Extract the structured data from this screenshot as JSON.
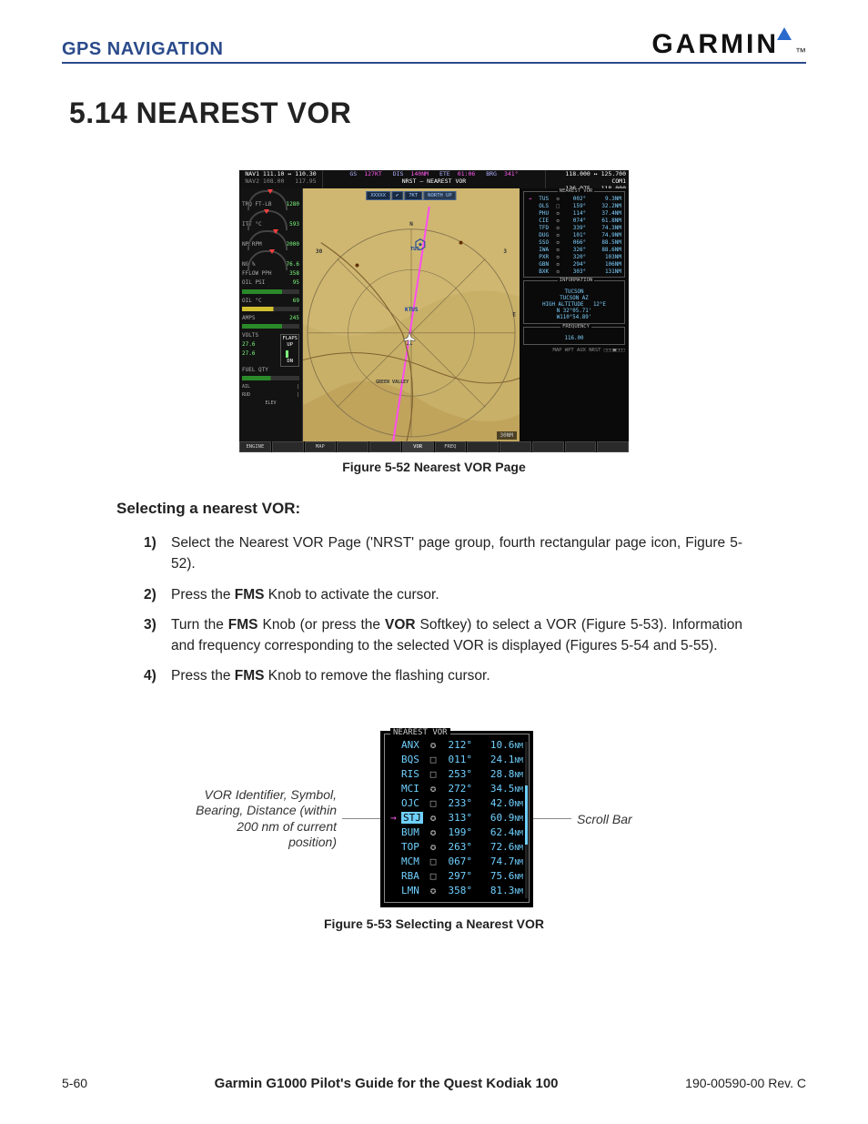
{
  "header": {
    "section": "GPS NAVIGATION",
    "brand": "GARMIN"
  },
  "title": "5.14  NEAREST VOR",
  "fig52": {
    "caption": "Figure 5-52  Nearest VOR Page",
    "nav1": {
      "active": "111.10",
      "arrow": "↔",
      "standby": "110.30",
      "lbl": "NAV1"
    },
    "nav2": {
      "active": "108.00",
      "standby": "117.95",
      "lbl": "NAV2"
    },
    "com1": {
      "active": "118.000",
      "arrow": "↔",
      "standby": "125.700",
      "lbl": "COM1"
    },
    "com2": {
      "active": "136.975",
      "standby": "118.000",
      "lbl": "COM2"
    },
    "ctr_top": {
      "gs_l": "GS",
      "gs": "127KT",
      "dis_l": "DIS",
      "dis": "140NM",
      "ete_l": "ETE",
      "ete": "01:06",
      "brg_l": "BRG",
      "brg": "341°"
    },
    "ctr_sub": "NRST – NEAREST VOR",
    "map_pills": [
      "XXXXX",
      "✔",
      "7KT",
      "NORTH UP"
    ],
    "map_labels": {
      "ktus": "KTUS",
      "tus": "TUS",
      "gv": "GREEN VALLEY"
    },
    "map_scale": "30NM",
    "eis": {
      "trq": {
        "lbl": "TRQ FT-LB",
        "val": "1280"
      },
      "itt": {
        "lbl": "ITT °C",
        "val": "593"
      },
      "np": {
        "lbl": "NP RPM",
        "val": "2000"
      },
      "ng": {
        "lbl": "NG %",
        "val": "76.6"
      },
      "fflow": {
        "lbl": "FFLOW PPH",
        "val": "358"
      },
      "oilpsi": {
        "lbl": "OIL PSI",
        "val": "95"
      },
      "oilc": {
        "lbl": "OIL °C",
        "val": "69"
      },
      "amps": {
        "lbl": "AMPS",
        "val": "245"
      },
      "volts": {
        "lbl": "VOLTS",
        "v1": "27.6",
        "v2": "27.6"
      },
      "fuel": {
        "lbl": "FUEL QTY"
      },
      "flaps": {
        "lbl": "FLAPS",
        "up": "UP",
        "dn": "DN"
      },
      "ail": "AIL",
      "rud": "RUD",
      "elev": "ELEV"
    },
    "nearest_title": "NEAREST VOR",
    "nearest": [
      {
        "id": "TUS",
        "sym": "✪",
        "brg": "002°",
        "dst": "9.3NM",
        "sel": true
      },
      {
        "id": "OLS",
        "sym": "□",
        "brg": "159°",
        "dst": "32.2NM"
      },
      {
        "id": "PHU",
        "sym": "✪",
        "brg": "114°",
        "dst": "37.4NM"
      },
      {
        "id": "CIE",
        "sym": "✪",
        "brg": "074°",
        "dst": "61.8NM"
      },
      {
        "id": "TFD",
        "sym": "✪",
        "brg": "339°",
        "dst": "74.3NM"
      },
      {
        "id": "DUG",
        "sym": "✪",
        "brg": "101°",
        "dst": "74.9NM"
      },
      {
        "id": "SSO",
        "sym": "✪",
        "brg": "066°",
        "dst": "88.5NM"
      },
      {
        "id": "IWA",
        "sym": "✪",
        "brg": "326°",
        "dst": "88.6NM"
      },
      {
        "id": "PXR",
        "sym": "✪",
        "brg": "320°",
        "dst": "103NM"
      },
      {
        "id": "GBN",
        "sym": "✪",
        "brg": "294°",
        "dst": "106NM"
      },
      {
        "id": "BXK",
        "sym": "✪",
        "brg": "303°",
        "dst": "131NM"
      }
    ],
    "info": {
      "title": "INFORMATION",
      "name": "TUCSON",
      "loc": "TUCSON AZ",
      "class": "HIGH ALTITUDE",
      "var": "12°E",
      "lat": "N 32°05.71'",
      "lon": "W110°54.89'"
    },
    "freq": {
      "title": "FREQUENCY",
      "val": "116.00"
    },
    "pagebar": "MAP  WPT  AUX  NRST □□□■□□□",
    "softkeys": [
      "ENGINE",
      "",
      "MAP",
      "",
      "",
      "VOR",
      "FREQ",
      "",
      "",
      "",
      "",
      ""
    ]
  },
  "subhead": "Selecting a nearest VOR:",
  "steps": [
    {
      "n": "1)",
      "html": "Select the Nearest VOR Page ('NRST' page group, fourth rectangular page icon, Figure 5-52)."
    },
    {
      "n": "2)",
      "html": "Press the <b>FMS</b> Knob to activate the cursor."
    },
    {
      "n": "3)",
      "html": "Turn the <b>FMS</b> Knob (or press the <b>VOR</b> Softkey) to select a VOR (Figure 5-53).  Information and frequency corresponding to the selected VOR is displayed (Figures 5-54 and 5-55)."
    },
    {
      "n": "4)",
      "html": "Press the <b>FMS</b> Knob to remove the flashing cursor."
    }
  ],
  "fig53": {
    "left_label": "VOR Identifier, Symbol, Bearing, Distance (within 200 nm of current position)",
    "right_label": "Scroll Bar",
    "title": "NEAREST VOR",
    "rows": [
      {
        "id": "ANX",
        "sym": "✪",
        "brg": "212°",
        "dst": "10.6",
        "u": "NM"
      },
      {
        "id": "BQS",
        "sym": "□",
        "brg": "011°",
        "dst": "24.1",
        "u": "NM"
      },
      {
        "id": "RIS",
        "sym": "□",
        "brg": "253°",
        "dst": "28.8",
        "u": "NM"
      },
      {
        "id": "MCI",
        "sym": "✪",
        "brg": "272°",
        "dst": "34.5",
        "u": "NM"
      },
      {
        "id": "OJC",
        "sym": "□",
        "brg": "233°",
        "dst": "42.0",
        "u": "NM"
      },
      {
        "id": "STJ",
        "sym": "✪",
        "brg": "313°",
        "dst": "60.9",
        "u": "NM",
        "sel": true
      },
      {
        "id": "BUM",
        "sym": "✪",
        "brg": "199°",
        "dst": "62.4",
        "u": "NM"
      },
      {
        "id": "TOP",
        "sym": "✪",
        "brg": "263°",
        "dst": "72.6",
        "u": "NM"
      },
      {
        "id": "MCM",
        "sym": "□",
        "brg": "067°",
        "dst": "74.7",
        "u": "NM"
      },
      {
        "id": "RBA",
        "sym": "□",
        "brg": "297°",
        "dst": "75.6",
        "u": "NM"
      },
      {
        "id": "LMN",
        "sym": "✪",
        "brg": "358°",
        "dst": "81.3",
        "u": "NM"
      }
    ],
    "caption": "Figure 5-53  Selecting a Nearest  VOR"
  },
  "footer": {
    "left": "5-60",
    "center": "Garmin G1000 Pilot's Guide for the Quest Kodiak 100",
    "right": "190-00590-00   Rev. C"
  }
}
